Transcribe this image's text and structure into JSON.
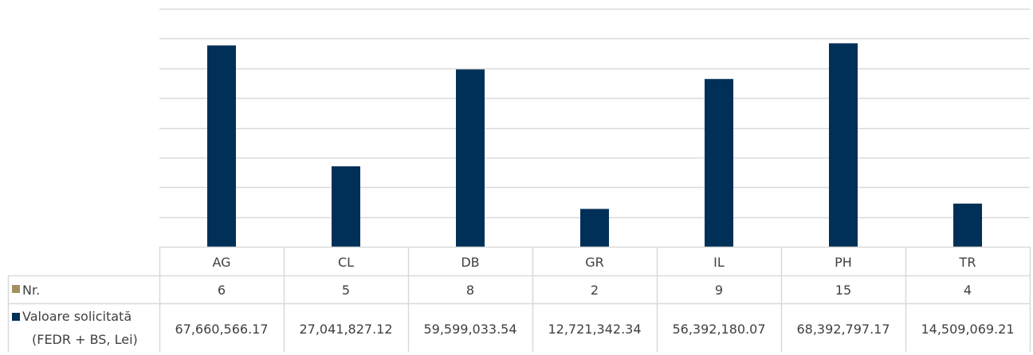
{
  "chart_data": {
    "type": "bar",
    "categories": [
      "AG",
      "CL",
      "DB",
      "GR",
      "IL",
      "PH",
      "TR"
    ],
    "series": [
      {
        "name": "Nr.",
        "values": [
          6,
          5,
          8,
          2,
          9,
          15,
          4
        ],
        "color": "#A0925A",
        "display": [
          "6",
          "5",
          "8",
          "2",
          "9",
          "15",
          "4"
        ],
        "plotted": false
      },
      {
        "name": "Valoare solicitată (FEDR + BS, Lei)",
        "name_lines": [
          "Valoare solicitată",
          "(FEDR + BS, Lei)"
        ],
        "values": [
          67660566.17,
          27041827.12,
          59599033.54,
          12721342.34,
          56392180.07,
          68392797.17,
          14509069.21
        ],
        "color": "#003057",
        "display": [
          "67,660,566.17",
          "27,041,827.12",
          "59,599,033.54",
          "12,721,342.34",
          "56,392,180.07",
          "68,392,797.17",
          "14,509,069.21"
        ],
        "plotted": true
      }
    ],
    "ylim": [
      0,
      80000000
    ],
    "y_gridlines": 8,
    "grid": true,
    "legend": "data-table"
  }
}
